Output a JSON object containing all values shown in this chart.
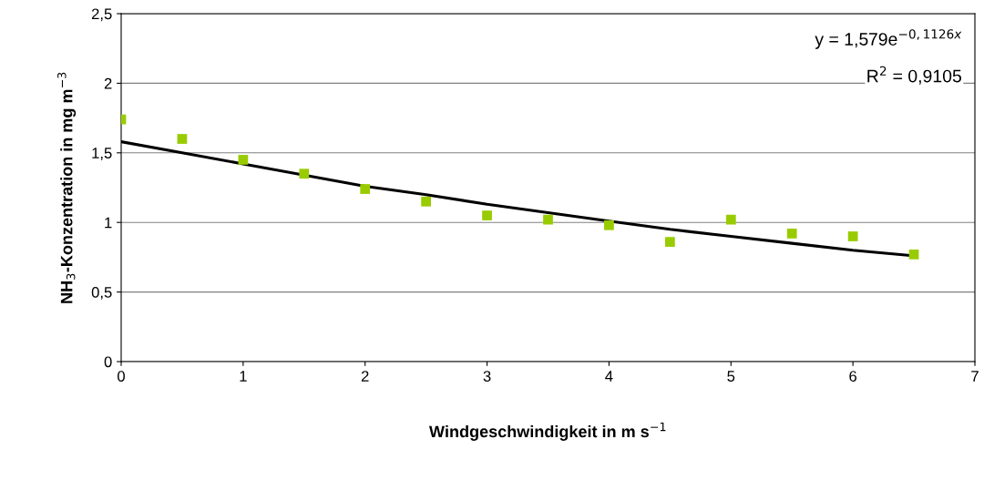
{
  "chart_data": {
    "type": "scatter",
    "xlabel": "Windgeschwindigkeit in m s$^{−1}$",
    "ylabel": "NH$_{3}$-Konzentration in mg m$^{−3}$",
    "xlim": [
      0,
      7
    ],
    "xticks": [
      0,
      1,
      2,
      3,
      4,
      5,
      6,
      7
    ],
    "ylim": [
      0,
      2.5
    ],
    "yticks": [
      0,
      {
        "value": 0.5,
        "label": "0,5"
      },
      1,
      {
        "value": 1.5,
        "label": "1,5"
      },
      2,
      {
        "value": 2.5,
        "label": "2,5"
      }
    ],
    "grid": "y",
    "series": [
      {
        "marker": "square",
        "color": "#99cc00",
        "x": [
          0,
          0.5,
          1,
          1.5,
          2,
          2.5,
          3,
          3.5,
          4,
          4.5,
          5,
          5.5,
          6,
          6.5
        ],
        "values": [
          1.74,
          1.6,
          1.45,
          1.35,
          1.24,
          1.15,
          1.05,
          1.02,
          0.98,
          0.86,
          1.02,
          0.92,
          0.9,
          0.77
        ]
      },
      {
        "type": "line",
        "marker": "none",
        "color": "#000000",
        "x": [
          0,
          0.5,
          1,
          1.5,
          2,
          2.5,
          3,
          3.5,
          4,
          4.5,
          5,
          5.5,
          6,
          6.5
        ],
        "values": [
          1.58,
          1.5,
          1.42,
          1.34,
          1.26,
          1.2,
          1.13,
          1.07,
          1.01,
          0.95,
          0.9,
          0.85,
          0.8,
          0.76
        ]
      }
    ],
    "annotations": [
      "y = 1,579e$^{−0,1126x}$",
      "R$^{2}$ = 0,9105"
    ]
  }
}
